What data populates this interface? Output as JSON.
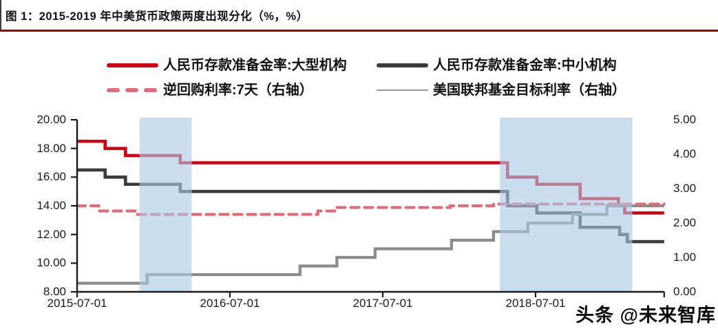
{
  "title": {
    "text": "图 1：2015-2019 年中美货币政策两度出现分化（%，%）"
  },
  "watermark": "头条 @未来智库",
  "colors": {
    "title_underline": "#a40000",
    "series_large_rrr": "#d10013",
    "series_small_rrr": "#3b3b3b",
    "series_reverse_repo": "#de6c7b",
    "series_fed_funds": "#8b8b8b",
    "shaded_band": "#a9c9e6",
    "axis": "#1a1a1a"
  },
  "legend": {
    "items": [
      {
        "label": "人民币存款准备金率:大型机构",
        "swatch": "solid-red"
      },
      {
        "label": "人民币存款准备金率:中小机构",
        "swatch": "solid-dark"
      },
      {
        "label": "逆回购利率:7天（右轴）",
        "swatch": "dashed-pink"
      },
      {
        "label": "美国联邦基金目标利率（右轴）",
        "swatch": "thin-gray"
      }
    ]
  },
  "chart_data": {
    "type": "line",
    "title": "2015-2019 年中美货币政策两度出现分化",
    "units": "%",
    "x_unit": "months since 2015-07-01",
    "x_end_month": 46.1,
    "x_ticks": [
      {
        "month": 0,
        "label": "2015-07-01"
      },
      {
        "month": 12,
        "label": "2016-07-01"
      },
      {
        "month": 24,
        "label": "2017-07-01"
      },
      {
        "month": 36,
        "label": "2018-07-01"
      }
    ],
    "left_axis": {
      "min": 8,
      "max": 20,
      "tick_values": [
        20,
        18,
        16,
        14,
        12,
        10,
        8
      ],
      "tick_labels": [
        "20.00",
        "18.00",
        "16.00",
        "14.00",
        "12.00",
        "10.00",
        "8.00"
      ]
    },
    "right_axis": {
      "min": 0,
      "max": 5,
      "tick_values": [
        5,
        4,
        3,
        2,
        1,
        0
      ],
      "tick_labels": [
        "5.00",
        "4.00",
        "3.00",
        "2.00",
        "1.00",
        "0.00"
      ]
    },
    "grid": false,
    "legend_position": "top",
    "series": [
      {
        "name": "人民币存款准备金率:大型机构",
        "axis": "left",
        "color": "#d10013",
        "width": 4.6,
        "dash": null,
        "z": 2,
        "steps": [
          [
            0,
            18.5
          ],
          [
            2.2,
            18.0
          ],
          [
            3.8,
            17.5
          ],
          [
            8.1,
            17.0
          ],
          [
            33.8,
            16.0
          ],
          [
            36.1,
            15.5
          ],
          [
            39.5,
            14.5
          ],
          [
            42.5,
            14.0
          ],
          [
            43.0,
            13.5
          ]
        ]
      },
      {
        "name": "人民币存款准备金率:中小机构",
        "axis": "left",
        "color": "#3b3b3b",
        "width": 4.6,
        "dash": null,
        "z": 1,
        "steps": [
          [
            0,
            16.5
          ],
          [
            2.2,
            16.0
          ],
          [
            3.8,
            15.5
          ],
          [
            8.1,
            15.0
          ],
          [
            33.8,
            14.0
          ],
          [
            36.1,
            13.5
          ],
          [
            39.5,
            12.5
          ],
          [
            42.6,
            12.0
          ],
          [
            43.2,
            11.5
          ]
        ]
      },
      {
        "name": "逆回购利率:7天（右轴）",
        "axis": "right",
        "color": "#de6c7b",
        "width": 4.3,
        "dash": "12 8",
        "z": 4,
        "steps": [
          [
            0,
            2.5
          ],
          [
            1.7,
            2.35
          ],
          [
            4.6,
            2.25
          ],
          [
            18.9,
            2.35
          ],
          [
            20.4,
            2.45
          ],
          [
            29.3,
            2.5
          ],
          [
            32.7,
            2.55
          ]
        ]
      },
      {
        "name": "美国联邦基金目标利率（右轴）",
        "axis": "right",
        "color": "#8b8b8b",
        "width": 4.3,
        "dash": null,
        "z": 3,
        "steps": [
          [
            0,
            0.25
          ],
          [
            5.5,
            0.5
          ],
          [
            17.5,
            0.75
          ],
          [
            20.4,
            1.0
          ],
          [
            23.4,
            1.25
          ],
          [
            29.4,
            1.5
          ],
          [
            32.7,
            1.75
          ],
          [
            35.4,
            2.0
          ],
          [
            38.9,
            2.25
          ],
          [
            41.6,
            2.5
          ]
        ]
      }
    ],
    "bands": [
      {
        "from_month": 4.9,
        "to_month": 9.0,
        "note": "divergence period 1"
      },
      {
        "from_month": 33.2,
        "to_month": 43.6,
        "note": "divergence period 2"
      }
    ]
  }
}
